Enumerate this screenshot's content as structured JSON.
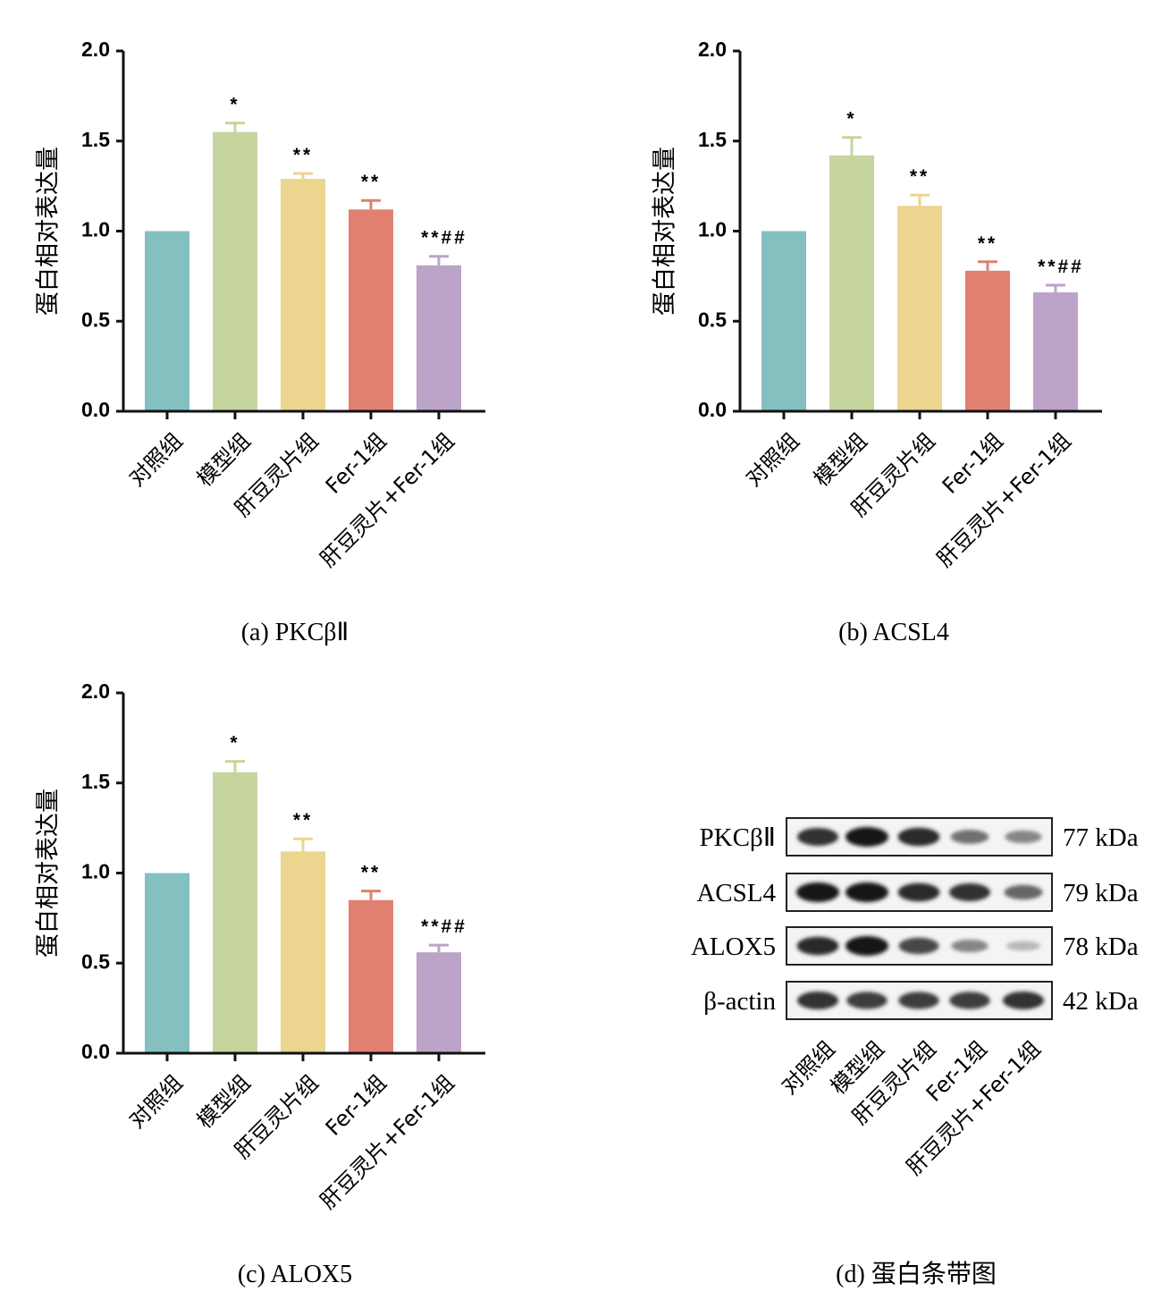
{
  "colors": {
    "bars": [
      "#84c0c0",
      "#c6d59e",
      "#ecd58f",
      "#e08070",
      "#bca3c8"
    ],
    "axis": "#111111"
  },
  "chart_data": [
    {
      "type": "bar",
      "caption": "(a) PKCβⅡ",
      "ylabel": "蛋白相对表达量",
      "categories": [
        "对照组",
        "模型组",
        "肝豆灵片组",
        "Fer-1组",
        "肝豆灵片+Fer-1组"
      ],
      "values": [
        1.0,
        1.55,
        1.29,
        1.12,
        0.81
      ],
      "errors": [
        0,
        0.05,
        0.03,
        0.05,
        0.05
      ],
      "annotations": [
        "",
        "*",
        "**",
        "**",
        "**##"
      ],
      "ylim": [
        0,
        2.0
      ],
      "yticks": [
        "0.0",
        "0.5",
        "1.0",
        "1.5",
        "2.0"
      ]
    },
    {
      "type": "bar",
      "caption": "(b) ACSL4",
      "ylabel": "蛋白相对表达量",
      "categories": [
        "对照组",
        "模型组",
        "肝豆灵片组",
        "Fer-1组",
        "肝豆灵片+Fer-1组"
      ],
      "values": [
        1.0,
        1.42,
        1.14,
        0.78,
        0.66
      ],
      "errors": [
        0,
        0.1,
        0.06,
        0.05,
        0.04
      ],
      "annotations": [
        "",
        "*",
        "**",
        "**",
        "**##"
      ],
      "ylim": [
        0,
        2.0
      ],
      "yticks": [
        "0.0",
        "0.5",
        "1.0",
        "1.5",
        "2.0"
      ]
    },
    {
      "type": "bar",
      "caption": "(c) ALOX5",
      "ylabel": "蛋白相对表达量",
      "categories": [
        "对照组",
        "模型组",
        "肝豆灵片组",
        "Fer-1组",
        "肝豆灵片+Fer-1组"
      ],
      "values": [
        1.0,
        1.56,
        1.12,
        0.85,
        0.56
      ],
      "errors": [
        0,
        0.06,
        0.07,
        0.05,
        0.04
      ],
      "annotations": [
        "",
        "*",
        "**",
        "**",
        "**##"
      ],
      "ylim": [
        0,
        2.0
      ],
      "yticks": [
        "0.0",
        "0.5",
        "1.0",
        "1.5",
        "2.0"
      ]
    }
  ],
  "western_blot": {
    "caption": "(d) 蛋白条带图",
    "rows": [
      {
        "protein": "PKCβⅡ",
        "size": "77 kDa",
        "intensity": [
          0.85,
          1.0,
          0.9,
          0.55,
          0.45
        ]
      },
      {
        "protein": "ACSL4",
        "size": "79 kDa",
        "intensity": [
          1.0,
          1.0,
          0.9,
          0.85,
          0.6
        ]
      },
      {
        "protein": "ALOX5",
        "size": "78 kDa",
        "intensity": [
          0.9,
          1.0,
          0.75,
          0.45,
          0.2
        ]
      },
      {
        "protein": "β-actin",
        "size": "42 kDa",
        "intensity": [
          0.85,
          0.8,
          0.8,
          0.8,
          0.85
        ]
      }
    ],
    "lanes": [
      "对照组",
      "模型组",
      "肝豆灵片组",
      "Fer-1组",
      "肝豆灵片+Fer-1组"
    ]
  }
}
